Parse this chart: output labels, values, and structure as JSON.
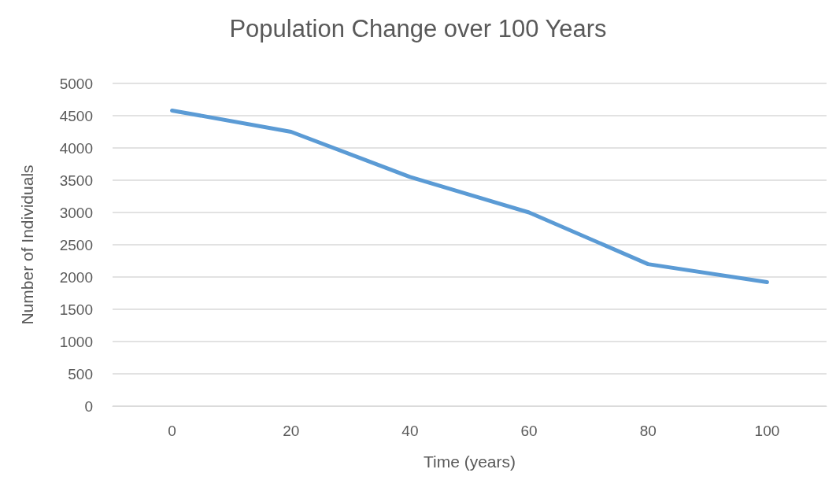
{
  "chart_data": {
    "type": "line",
    "title": "Population Change over 100 Years",
    "xlabel": "Time (years)",
    "ylabel": "Number of Individuals",
    "categories": [
      "0",
      "20",
      "40",
      "60",
      "80",
      "100"
    ],
    "series": [
      {
        "color": "#5b9bd5",
        "values": [
          4580,
          4250,
          3550,
          3000,
          2200,
          1920
        ]
      }
    ],
    "ylim": [
      0,
      5000
    ],
    "yticks": [
      0,
      500,
      1000,
      1500,
      2000,
      2500,
      3000,
      3500,
      4000,
      4500,
      5000
    ],
    "grid": "y",
    "marker": "none",
    "line_style": "solid"
  }
}
